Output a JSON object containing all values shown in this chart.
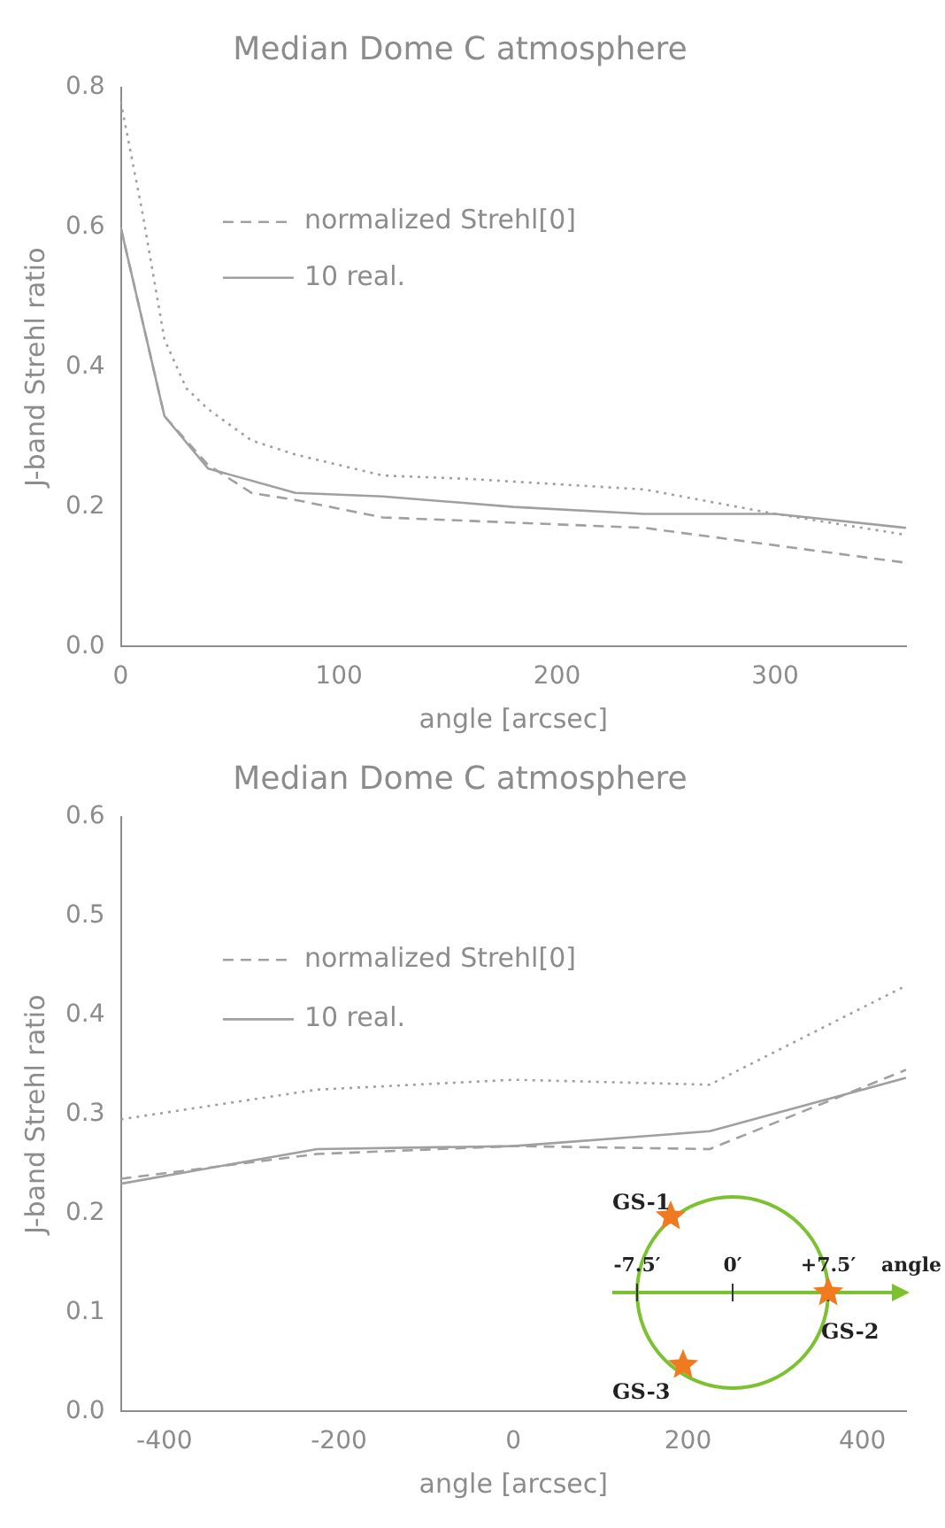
{
  "chart_data": [
    {
      "type": "line",
      "title": "Median Dome C atmosphere",
      "xlabel": "angle [arcsec]",
      "ylabel": "J-band Strehl ratio",
      "xlim": [
        0,
        360
      ],
      "xticks": [
        0,
        100,
        200,
        300
      ],
      "ylim": [
        0,
        0.8
      ],
      "yticks": [
        {
          "value": 0,
          "label": "0.0"
        },
        {
          "value": 0.2,
          "label": "0.2"
        },
        {
          "value": 0.4,
          "label": "0.4"
        },
        {
          "value": 0.6,
          "label": "0.6"
        },
        {
          "value": 0.8,
          "label": "0.8"
        }
      ],
      "legend": "top left",
      "marker": "none",
      "series": [
        {
          "color": "#a0a0a0",
          "line_style": "dotted",
          "x": [
            0,
            10,
            20,
            30,
            40,
            60,
            80,
            120,
            160,
            240,
            300,
            360
          ],
          "values": [
            0.78,
            0.62,
            0.44,
            0.37,
            0.34,
            0.295,
            0.275,
            0.245,
            0.24,
            0.225,
            0.19,
            0.16
          ]
        },
        {
          "name": "normalized Strehl[0]",
          "color": "#a0a0a0",
          "line_style": "dashed",
          "x": [
            0,
            20,
            40,
            60,
            80,
            120,
            240,
            360
          ],
          "values": [
            0.6,
            0.33,
            0.26,
            0.22,
            0.21,
            0.185,
            0.17,
            0.12
          ]
        },
        {
          "name": "10 real.",
          "color": "#a0a0a0",
          "line_style": "solid",
          "x": [
            0,
            20,
            40,
            80,
            120,
            180,
            240,
            300,
            360
          ],
          "values": [
            0.6,
            0.33,
            0.255,
            0.22,
            0.215,
            0.2,
            0.19,
            0.19,
            0.17
          ]
        }
      ]
    },
    {
      "type": "line",
      "title": "Median Dome C atmosphere",
      "xlabel": "angle [arcsec]",
      "ylabel": "J-band Strehl ratio",
      "xlim": [
        -450,
        450
      ],
      "xticks": [
        -400,
        -200,
        0,
        200,
        400
      ],
      "ylim": [
        0,
        0.6
      ],
      "yticks": [
        {
          "value": 0,
          "label": "0.0"
        },
        {
          "value": 0.1,
          "label": "0.1"
        },
        {
          "value": 0.2,
          "label": "0.2"
        },
        {
          "value": 0.3,
          "label": "0.3"
        },
        {
          "value": 0.4,
          "label": "0.4"
        },
        {
          "value": 0.5,
          "label": "0.5"
        },
        {
          "value": 0.6,
          "label": "0.6"
        }
      ],
      "legend": "top left",
      "marker": "none",
      "annotations": [
        "GS-1",
        "-7.5′",
        "0′",
        "+7.5′",
        "angle",
        "GS-2",
        "GS-3"
      ],
      "series": [
        {
          "color": "#a0a0a0",
          "line_style": "dotted",
          "x": [
            -450,
            -225,
            0,
            225,
            450
          ],
          "values": [
            0.295,
            0.325,
            0.335,
            0.33,
            0.43
          ]
        },
        {
          "name": "normalized Strehl[0]",
          "color": "#a0a0a0",
          "line_style": "dashed",
          "x": [
            -450,
            -225,
            0,
            225,
            450
          ],
          "values": [
            0.235,
            0.26,
            0.268,
            0.265,
            0.345
          ]
        },
        {
          "name": "10 real.",
          "color": "#a0a0a0",
          "line_style": "solid",
          "x": [
            -450,
            -225,
            0,
            225,
            450
          ],
          "values": [
            0.23,
            0.265,
            0.268,
            0.283,
            0.337
          ]
        }
      ]
    }
  ]
}
